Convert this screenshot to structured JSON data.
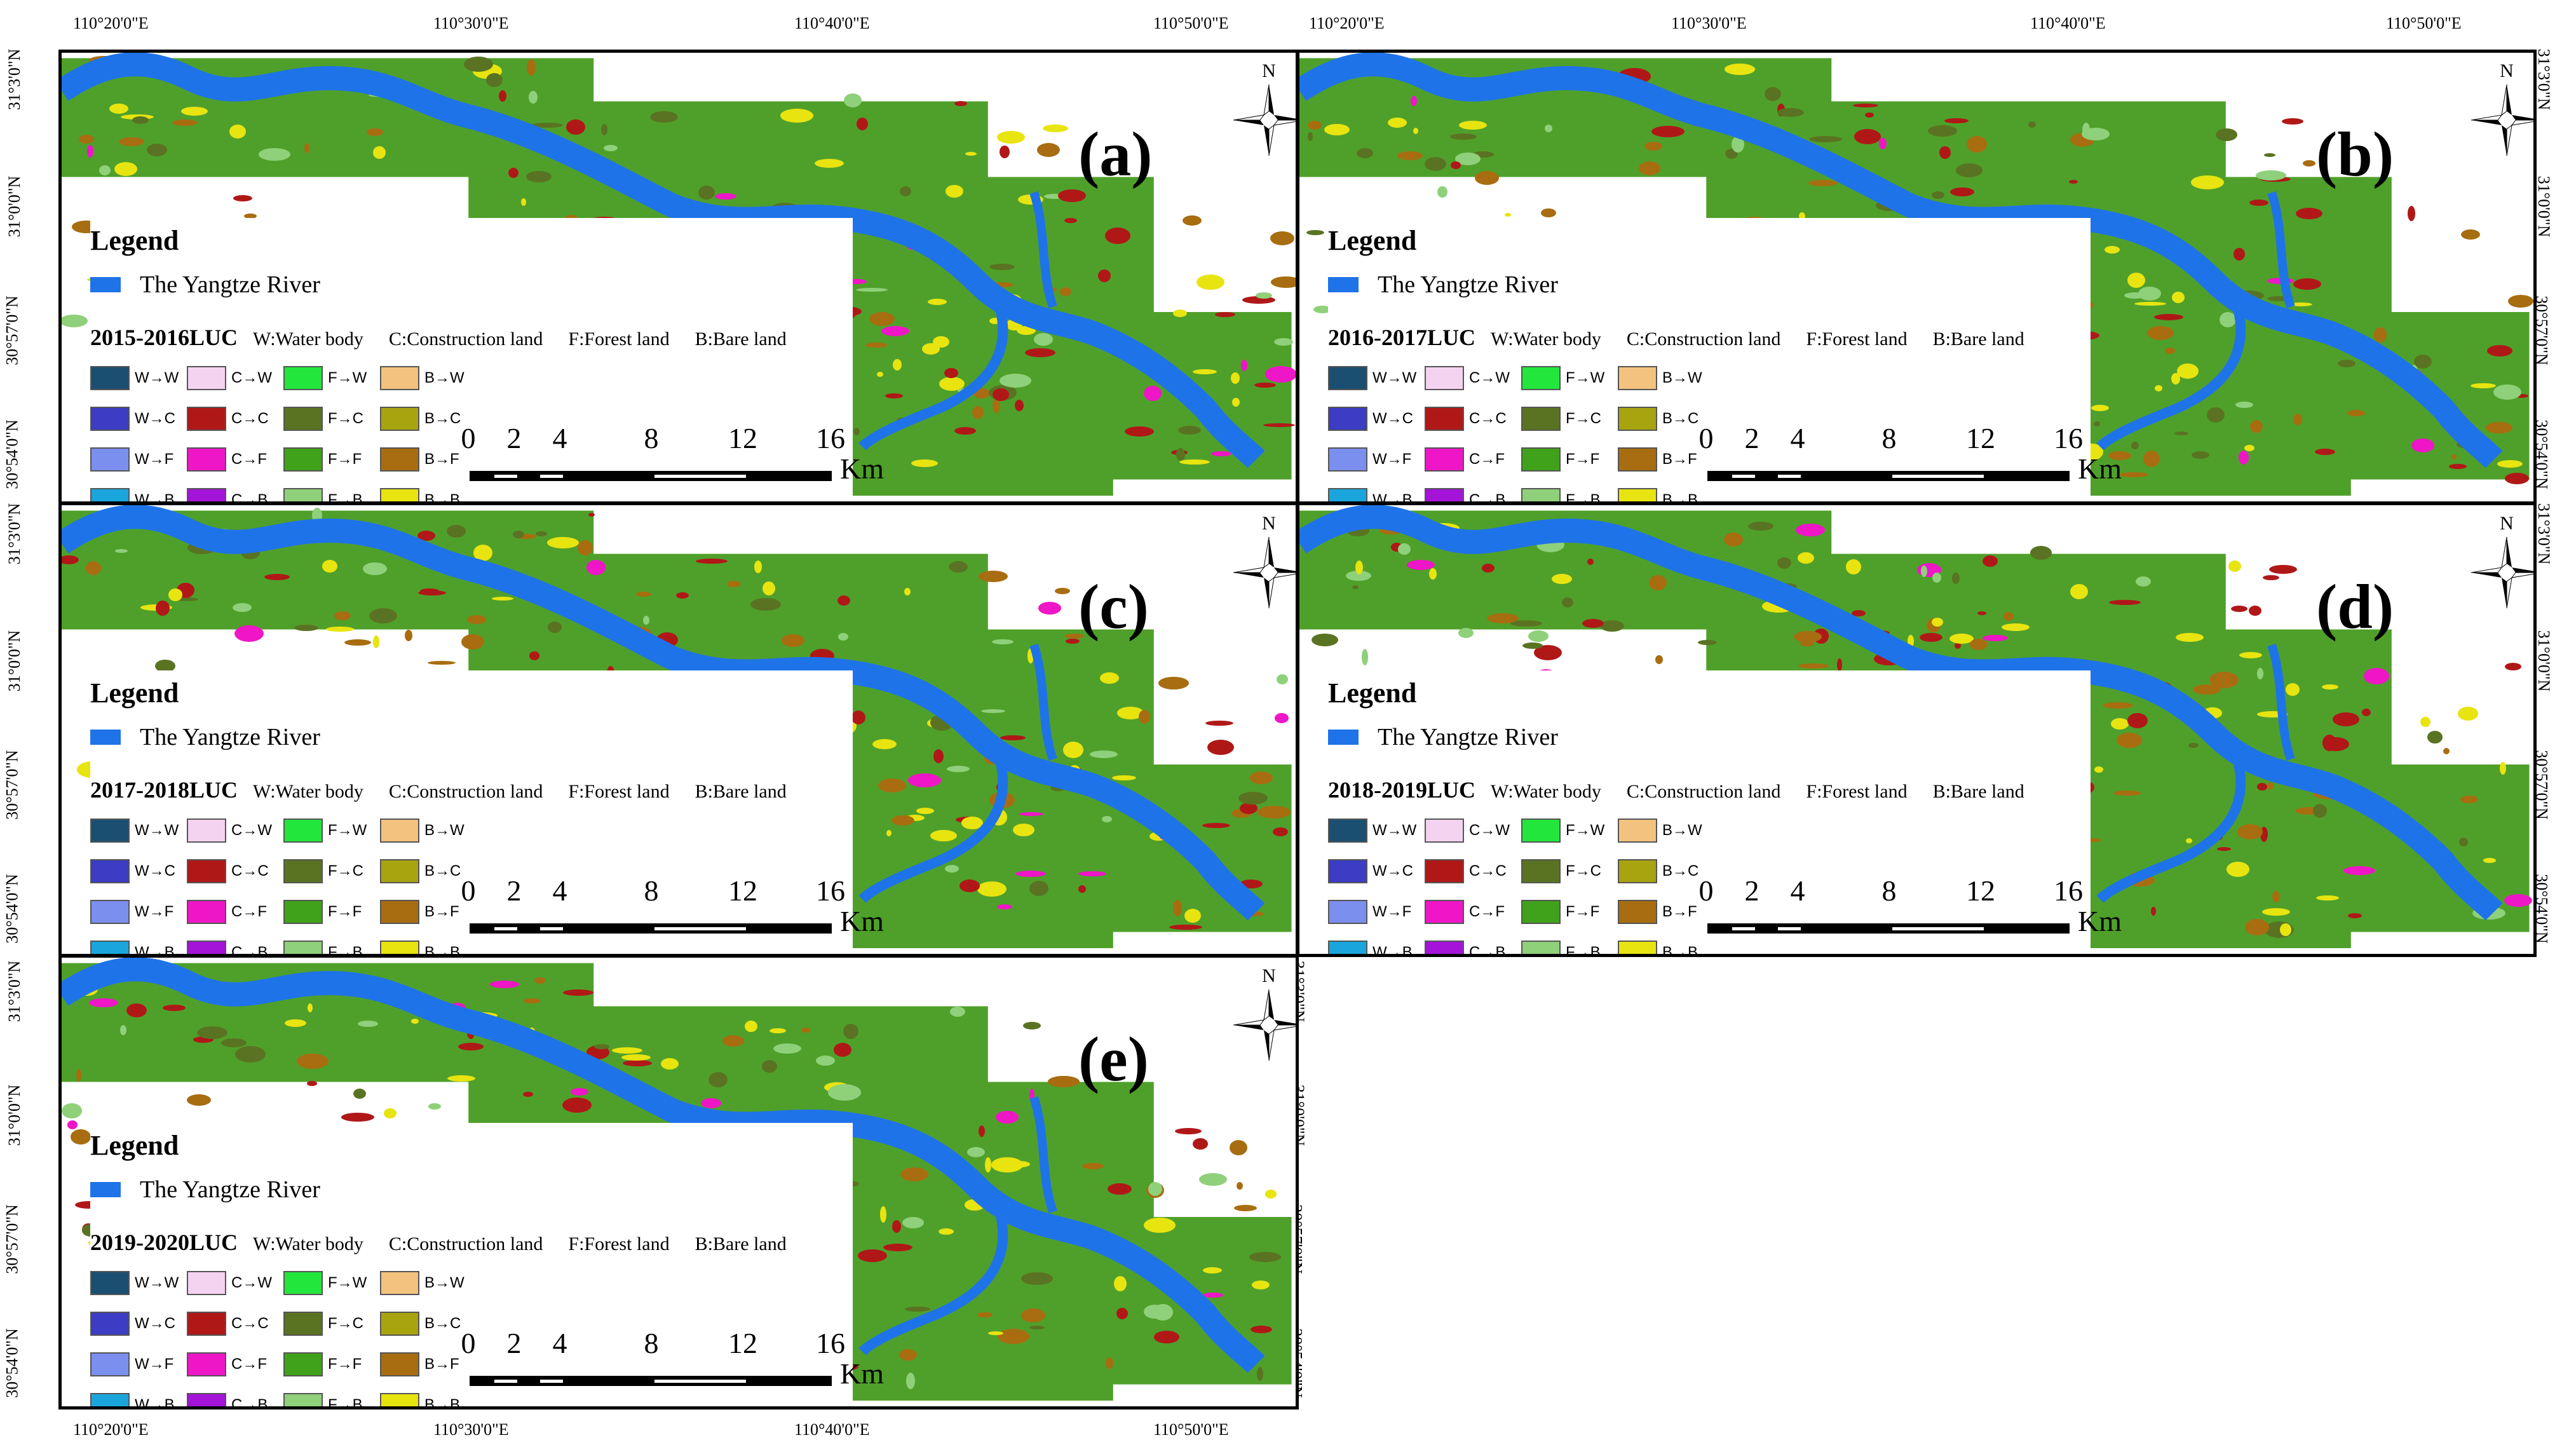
{
  "top_coords": [
    "110°20'0\"E",
    "110°30'0\"E",
    "110°40'0\"E",
    "110°50'0\"E"
  ],
  "bottom_coords": [
    "110°20'0\"E",
    "110°30'0\"E",
    "110°40'0\"E",
    "110°50'0\"E"
  ],
  "left_coords": [
    "31°3'0\"N",
    "31°0'0\"N",
    "30°57'0\"N",
    "30°54'0\"N"
  ],
  "north_letter": "N",
  "legend_title": "Legend",
  "river_label": "The Yangtze River",
  "definitions": [
    "W:Water body",
    "C:Construction land",
    "F:Forest land",
    "B:Bare land"
  ],
  "scale_ticks": [
    "0",
    "2",
    "4",
    "8",
    "12",
    "16"
  ],
  "scale_unit": "Km",
  "transitions": [
    {
      "label": "W→W",
      "color": "#1b4f72"
    },
    {
      "label": "C→W",
      "color": "#f4d3f0"
    },
    {
      "label": "F→W",
      "color": "#22e63c"
    },
    {
      "label": "B→W",
      "color": "#f2c27e"
    },
    {
      "label": "W→C",
      "color": "#3c3cc4"
    },
    {
      "label": "C→C",
      "color": "#b01818"
    },
    {
      "label": "F→C",
      "color": "#5a7322"
    },
    {
      "label": "B→C",
      "color": "#a8a410"
    },
    {
      "label": "W→F",
      "color": "#7b8fef"
    },
    {
      "label": "C→F",
      "color": "#ee16c6"
    },
    {
      "label": "F→F",
      "color": "#3fa21a"
    },
    {
      "label": "B→F",
      "color": "#a86d10"
    },
    {
      "label": "W→B",
      "color": "#1aa6dc"
    },
    {
      "label": "C→B",
      "color": "#a414d8"
    },
    {
      "label": "F→B",
      "color": "#8fd07a"
    },
    {
      "label": "B→B",
      "color": "#e8e410"
    }
  ],
  "panels": [
    {
      "id": "a",
      "label": "(a)",
      "luc": "2015-2016LUC"
    },
    {
      "id": "b",
      "label": "(b)",
      "luc": "2016-2017LUC"
    },
    {
      "id": "c",
      "label": "(c)",
      "luc": "2017-2018LUC"
    },
    {
      "id": "d",
      "label": "(d)",
      "luc": "2018-2019LUC"
    },
    {
      "id": "e",
      "label": "(e)",
      "luc": "2019-2020LUC"
    }
  ],
  "colors": {
    "river": "#1f73e8",
    "forest": "#4fa02a",
    "construction": "#b01818",
    "bare": "#e8e410"
  }
}
